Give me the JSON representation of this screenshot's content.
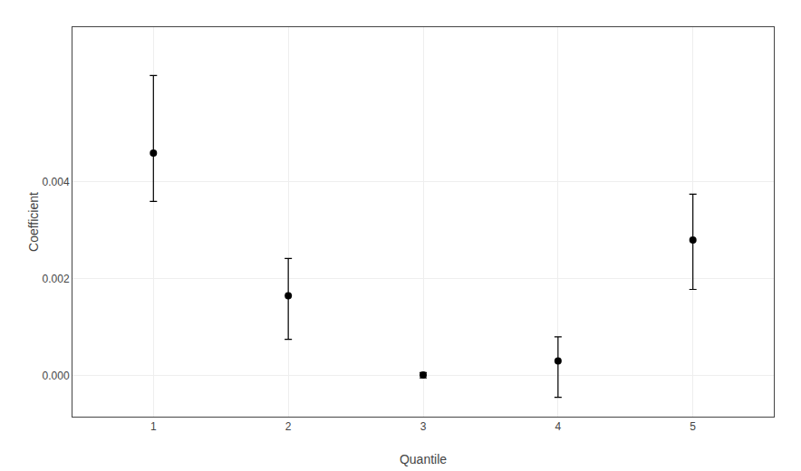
{
  "chart_data": {
    "type": "scatter",
    "x": [
      1,
      2,
      3,
      4,
      5
    ],
    "values": [
      0.0046,
      0.00165,
      1e-05,
      0.0003,
      0.0028
    ],
    "ci_lower": [
      0.0036,
      0.00075,
      -5e-05,
      -0.00045,
      0.00178
    ],
    "ci_upper": [
      0.0062,
      0.00242,
      6e-05,
      0.0008,
      0.00375
    ],
    "xlabel": "Quantile",
    "ylabel": "Coefficient",
    "xlim": [
      0.4,
      5.6
    ],
    "ylim": [
      -0.00085,
      0.0072
    ],
    "xticks": [
      1,
      2,
      3,
      4,
      5
    ],
    "yticks": [
      {
        "value": 0,
        "label": "0.000"
      },
      0.002,
      0.004
    ],
    "grid": true,
    "color": "black",
    "marker": "circle"
  }
}
